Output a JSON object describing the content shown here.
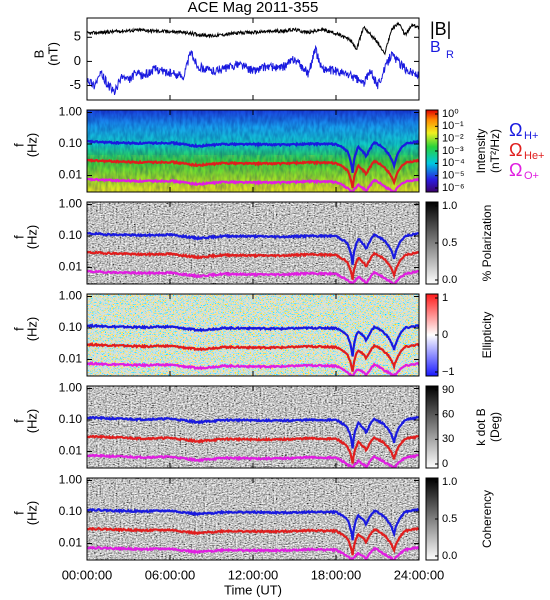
{
  "figure": {
    "title": "ACE Mag 2011-355",
    "xlabel": "Time (UT)",
    "x_tick_labels": [
      "00:00:00",
      "06:00:00",
      "12:00:00",
      "18:00:00",
      "24:00:00"
    ]
  },
  "chart_data": [
    {
      "type": "line",
      "title": "ACE Mag 2011-355",
      "xlabel": "",
      "ylabel": "B",
      "yunit": "(nT)",
      "xlim": [
        0,
        24
      ],
      "ylim": [
        -8,
        9
      ],
      "y_ticks": [
        5,
        0,
        -5
      ],
      "legend_position": "right",
      "legend": [
        {
          "name": "|B|",
          "color": "#000000"
        },
        {
          "name": "B",
          "sub": "R",
          "color": "#1a1adf"
        }
      ],
      "series": [
        {
          "name": "|B|",
          "color": "#000000",
          "x": [
            0,
            1,
            2,
            3,
            4,
            5,
            6,
            7,
            8,
            9,
            10,
            11,
            12,
            13,
            14,
            15,
            16,
            17,
            18,
            19,
            19.5,
            20,
            21,
            21.5,
            22,
            22.5,
            23,
            23.5,
            24
          ],
          "y": [
            5.8,
            6,
            6.2,
            6.4,
            6.5,
            6.3,
            6.2,
            6.0,
            5.6,
            5.3,
            5.6,
            5.9,
            6.0,
            6.2,
            6.3,
            6.6,
            6.0,
            6.6,
            5.8,
            4.5,
            2.5,
            7.2,
            4.0,
            1.5,
            6.5,
            8.0,
            5.5,
            7.5,
            7.0
          ]
        },
        {
          "name": "B_R",
          "color": "#1a1adf",
          "x": [
            0,
            0.5,
            1,
            1.5,
            2,
            2.5,
            3,
            3.5,
            4,
            5,
            6,
            7,
            7.5,
            8,
            9,
            10,
            11,
            12,
            13,
            14,
            15,
            16,
            16.5,
            17,
            18,
            19,
            20,
            20.5,
            21,
            22,
            23,
            24
          ],
          "y": [
            -3.5,
            -5,
            -2.5,
            -4.8,
            -6.5,
            -3,
            -4,
            -2.5,
            -3,
            -1.5,
            -2.5,
            -3,
            2,
            -1,
            -2,
            -1.5,
            -0.5,
            -2,
            -1,
            -1.5,
            0.5,
            -2.5,
            2.5,
            -1.5,
            -2,
            -2.8,
            -4.5,
            -2,
            -5,
            1.5,
            -1.5,
            -3
          ]
        }
      ]
    },
    {
      "type": "heatmap",
      "title": "",
      "ylabel": "f",
      "yunit": "(Hz)",
      "yscale": "log",
      "ylim": [
        0.003,
        1.2
      ],
      "y_tick_labels": [
        "1.00",
        "0.10",
        "0.01"
      ],
      "xlim": [
        0,
        24
      ],
      "colorbar": {
        "title": "Intensity",
        "unit": "(nT²/Hz)",
        "tick_labels": [
          "10⁰",
          "10⁻¹",
          "10⁻²",
          "10⁻³",
          "10⁻⁴",
          "10⁻⁵",
          "10⁻⁶"
        ],
        "colormap": "rainbow"
      },
      "gyro_lines": [
        {
          "name": "ΩH+",
          "color": "#1a1adf"
        },
        {
          "name": "ΩHe+",
          "color": "#e01e1e"
        },
        {
          "name": "ΩO+",
          "color": "#e01ee0"
        }
      ]
    },
    {
      "type": "heatmap",
      "title": "",
      "ylabel": "f",
      "yunit": "(Hz)",
      "yscale": "log",
      "ylim": [
        0.003,
        1.2
      ],
      "y_tick_labels": [
        "1.00",
        "0.10",
        "0.01"
      ],
      "xlim": [
        0,
        24
      ],
      "colorbar": {
        "title": "% Polarization",
        "unit": "",
        "tick_labels": [
          "1.0",
          "0.5",
          "0.0"
        ],
        "colormap": "gray"
      }
    },
    {
      "type": "heatmap",
      "title": "",
      "ylabel": "f",
      "yunit": "(Hz)",
      "yscale": "log",
      "ylim": [
        0.003,
        1.2
      ],
      "y_tick_labels": [
        "1.00",
        "0.10",
        "0.01"
      ],
      "xlim": [
        0,
        24
      ],
      "colorbar": {
        "title": "Ellipticity",
        "unit": "",
        "tick_labels": [
          "1",
          "0",
          "−1"
        ],
        "colormap": "bwr"
      }
    },
    {
      "type": "heatmap",
      "title": "",
      "ylabel": "f",
      "yunit": "(Hz)",
      "yscale": "log",
      "ylim": [
        0.003,
        1.2
      ],
      "y_tick_labels": [
        "1.00",
        "0.10",
        "0.01"
      ],
      "xlim": [
        0,
        24
      ],
      "colorbar": {
        "title": "k dot B",
        "unit": "(Deg)",
        "tick_labels": [
          "90",
          "60",
          "30",
          "0"
        ],
        "colormap": "gray"
      }
    },
    {
      "type": "heatmap",
      "title": "",
      "ylabel": "f",
      "yunit": "(Hz)",
      "yscale": "log",
      "ylim": [
        0.003,
        1.2
      ],
      "y_tick_labels": [
        "1.00",
        "0.10",
        "0.01"
      ],
      "xlim": [
        0,
        24
      ],
      "colorbar": {
        "title": "Coherency",
        "unit": "",
        "tick_labels": [
          "1.0",
          "0.5",
          "0.0"
        ],
        "colormap": "gray"
      }
    }
  ],
  "gyrofrequency_traces": {
    "x": [
      0,
      2,
      4,
      6,
      8,
      10,
      12,
      14,
      16,
      18,
      18.8,
      19.2,
      19.6,
      20.2,
      20.8,
      21.5,
      22.2,
      23,
      24
    ],
    "H+": [
      0.12,
      0.11,
      0.105,
      0.11,
      0.085,
      0.1,
      0.098,
      0.095,
      0.1,
      0.1,
      0.06,
      0.012,
      0.08,
      0.04,
      0.11,
      0.07,
      0.02,
      0.1,
      0.12
    ],
    "He+": [
      0.03,
      0.028,
      0.026,
      0.027,
      0.021,
      0.025,
      0.024,
      0.024,
      0.026,
      0.025,
      0.015,
      0.004,
      0.02,
      0.011,
      0.028,
      0.018,
      0.006,
      0.025,
      0.03
    ],
    "O+": [
      0.0075,
      0.007,
      0.0066,
      0.0068,
      0.0053,
      0.0063,
      0.006,
      0.006,
      0.0065,
      0.0063,
      0.004,
      0.003,
      0.005,
      0.0032,
      0.007,
      0.0045,
      0.003,
      0.0063,
      0.0075
    ]
  }
}
